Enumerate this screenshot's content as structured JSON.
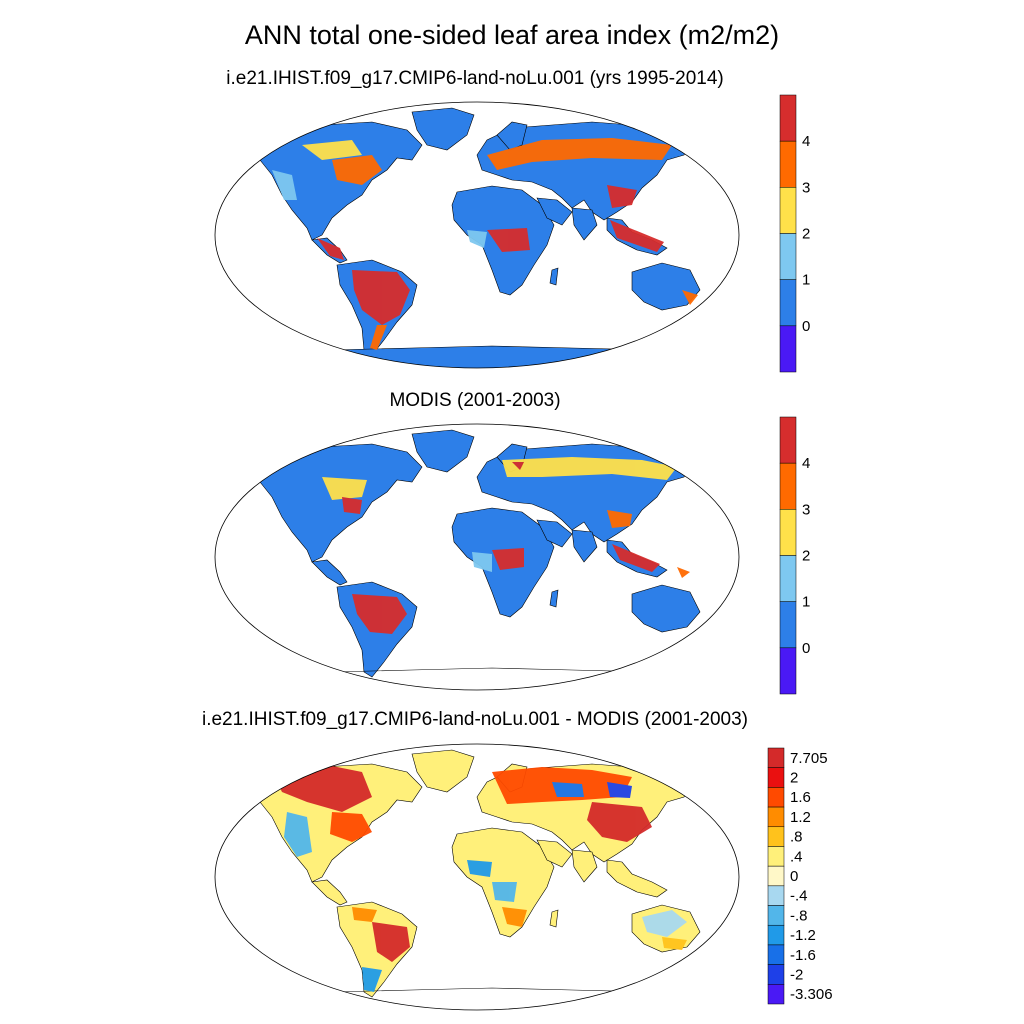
{
  "title": "ANN total one-sided leaf area index (m2/m2)",
  "panels": [
    {
      "title": "i.e21.IHIST.f09_g17.CMIP6-land-noLu.001 (yrs 1995-2014)",
      "colorbar": {
        "labels": [
          "4",
          "3",
          "2",
          "1",
          "0"
        ],
        "colors": [
          "#d62d2d",
          "#ff6a00",
          "#ffe14a",
          "#7ec8f0",
          "#2d7fe8",
          "#4a19f5"
        ]
      }
    },
    {
      "title": "MODIS (2001-2003)",
      "colorbar": {
        "labels": [
          "4",
          "3",
          "2",
          "1",
          "0"
        ],
        "colors": [
          "#d62d2d",
          "#ff6a00",
          "#ffe14a",
          "#7ec8f0",
          "#2d7fe8",
          "#4a19f5"
        ]
      }
    },
    {
      "title": "i.e21.IHIST.f09_g17.CMIP6-land-noLu.001 - MODIS (2001-2003)",
      "colorbar": {
        "labels": [
          "7.705",
          "2",
          "1.6",
          "1.2",
          ".8",
          ".4",
          "0",
          "-.4",
          "-.8",
          "-1.2",
          "-1.6",
          "-2",
          "-3.306"
        ],
        "colors": [
          "#d42a2a",
          "#ea1010",
          "#ff4a00",
          "#ff8c00",
          "#ffc21c",
          "#fff07a",
          "#fff8c8",
          "#a8d8f0",
          "#52b6ea",
          "#209ae8",
          "#1870e8",
          "#1e40e8",
          "#4a19f5"
        ]
      }
    }
  ],
  "colors": {
    "ocean": "#ffffff",
    "outline": "#000000"
  }
}
